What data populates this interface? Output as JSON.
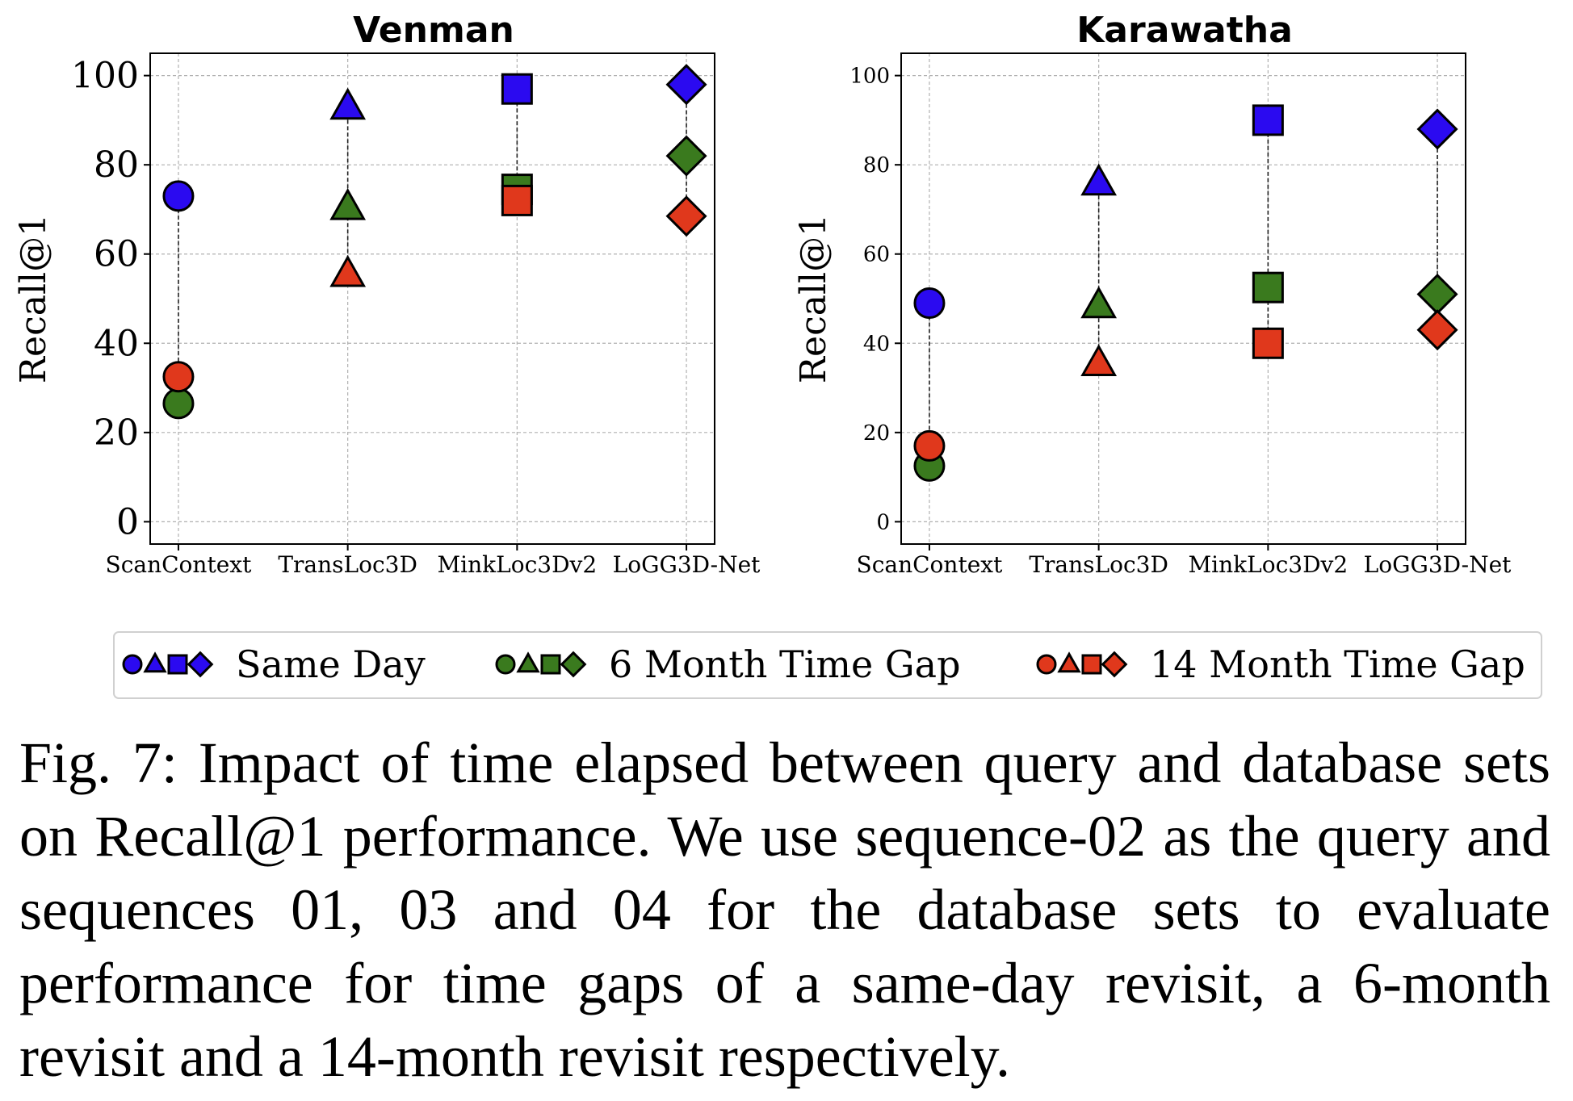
{
  "chart_data": [
    {
      "type": "scatter",
      "title": "Venman",
      "xlabel": "",
      "ylabel": "Recall@1",
      "ylim": [
        -5,
        105
      ],
      "yticks": [
        0,
        20,
        40,
        60,
        80,
        100
      ],
      "categories": [
        "ScanContext",
        "TransLoc3D",
        "MinkLoc3Dv2",
        "LoGG3D-Net"
      ],
      "markers": [
        "circle",
        "triangle",
        "square",
        "diamond"
      ],
      "grid": true,
      "series": [
        {
          "name": "Same Day",
          "color": "#2b0af0",
          "values": [
            73,
            93,
            97,
            98
          ]
        },
        {
          "name": "6 Month Time Gap",
          "color": "#3a7a1e",
          "values": [
            26.5,
            70.5,
            74.5,
            82
          ]
        },
        {
          "name": "14 Month Time Gap",
          "color": "#e0381c",
          "values": [
            32.5,
            55.5,
            72,
            68.5
          ]
        }
      ]
    },
    {
      "type": "scatter",
      "title": "Karawatha",
      "xlabel": "",
      "ylabel": "Recall@1",
      "ylim": [
        -5,
        105
      ],
      "yticks": [
        0,
        20,
        40,
        60,
        80,
        100
      ],
      "categories": [
        "ScanContext",
        "TransLoc3D",
        "MinkLoc3Dv2",
        "LoGG3D-Net"
      ],
      "markers": [
        "circle",
        "triangle",
        "square",
        "diamond"
      ],
      "grid": true,
      "series": [
        {
          "name": "Same Day",
          "color": "#2b0af0",
          "values": [
            49,
            76,
            90,
            88
          ]
        },
        {
          "name": "6 Month Time Gap",
          "color": "#3a7a1e",
          "values": [
            12.5,
            48.5,
            52.5,
            51
          ]
        },
        {
          "name": "14 Month Time Gap",
          "color": "#e0381c",
          "values": [
            17,
            35.5,
            40,
            43
          ]
        }
      ]
    }
  ],
  "legend": {
    "placement": "bottom",
    "entries": [
      "Same Day",
      "6 Month Time Gap",
      "14 Month Time Gap"
    ]
  },
  "caption": "Fig. 7: Impact of time elapsed between query and database sets on Recall@1 performance. We use sequence-02 as the query and sequences 01, 03 and 04 for the database sets to evaluate performance for time gaps of a same-day revisit, a 6-month revisit and a 14-month revisit respectively."
}
